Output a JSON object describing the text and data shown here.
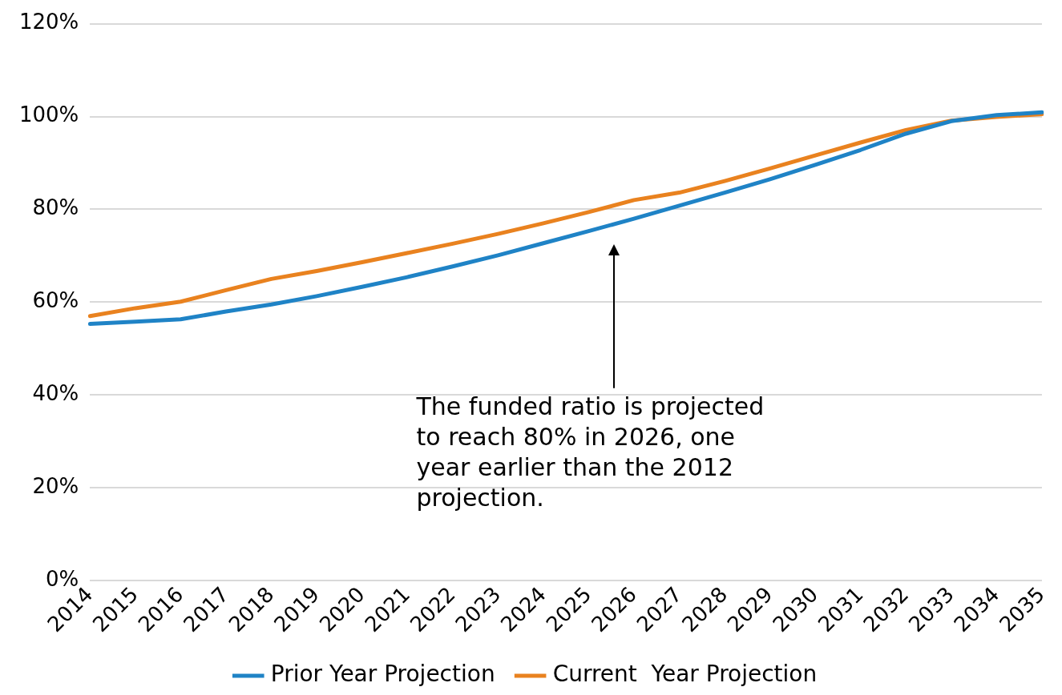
{
  "chart_data": {
    "type": "line",
    "categories": [
      "2014",
      "2015",
      "2016",
      "2017",
      "2018",
      "2019",
      "2020",
      "2021",
      "2022",
      "2023",
      "2024",
      "2025",
      "2026",
      "2027",
      "2028",
      "2029",
      "2030",
      "2031",
      "2032",
      "2033",
      "2034",
      "2035"
    ],
    "series": [
      {
        "name": "Prior Year Projection",
        "color": "#1f83c6",
        "values": [
          55.3,
          55.8,
          56.3,
          58,
          59.5,
          61.3,
          63.3,
          65.4,
          67.7,
          70.1,
          72.7,
          75.3,
          78,
          80.8,
          83.6,
          86.5,
          89.6,
          92.8,
          96.3,
          99,
          100.3,
          100.9
        ]
      },
      {
        "name": "Current  Year Projection",
        "color": "#e9821f",
        "values": [
          57,
          58.7,
          60.1,
          62.6,
          65,
          66.7,
          68.6,
          70.6,
          72.6,
          74.7,
          77,
          79.4,
          82,
          83.6,
          86.1,
          88.8,
          91.6,
          94.4,
          97.1,
          99.1,
          99.9,
          100.5
        ]
      }
    ],
    "ylim": [
      0,
      120
    ],
    "yticks": [
      {
        "value": 0,
        "label": "0%"
      },
      {
        "value": 20,
        "label": "20%"
      },
      {
        "value": 40,
        "label": "40%"
      },
      {
        "value": 60,
        "label": "60%"
      },
      {
        "value": 80,
        "label": "80%"
      },
      {
        "value": 100,
        "label": "100%"
      },
      {
        "value": 120,
        "label": "120%"
      }
    ],
    "grid": "y",
    "legend": "bottom",
    "marker": "none",
    "line_style": "solid",
    "annotations": [
      "The funded ratio is projected to reach 80% in 2026, one year earlier than the 2012 projection."
    ]
  }
}
